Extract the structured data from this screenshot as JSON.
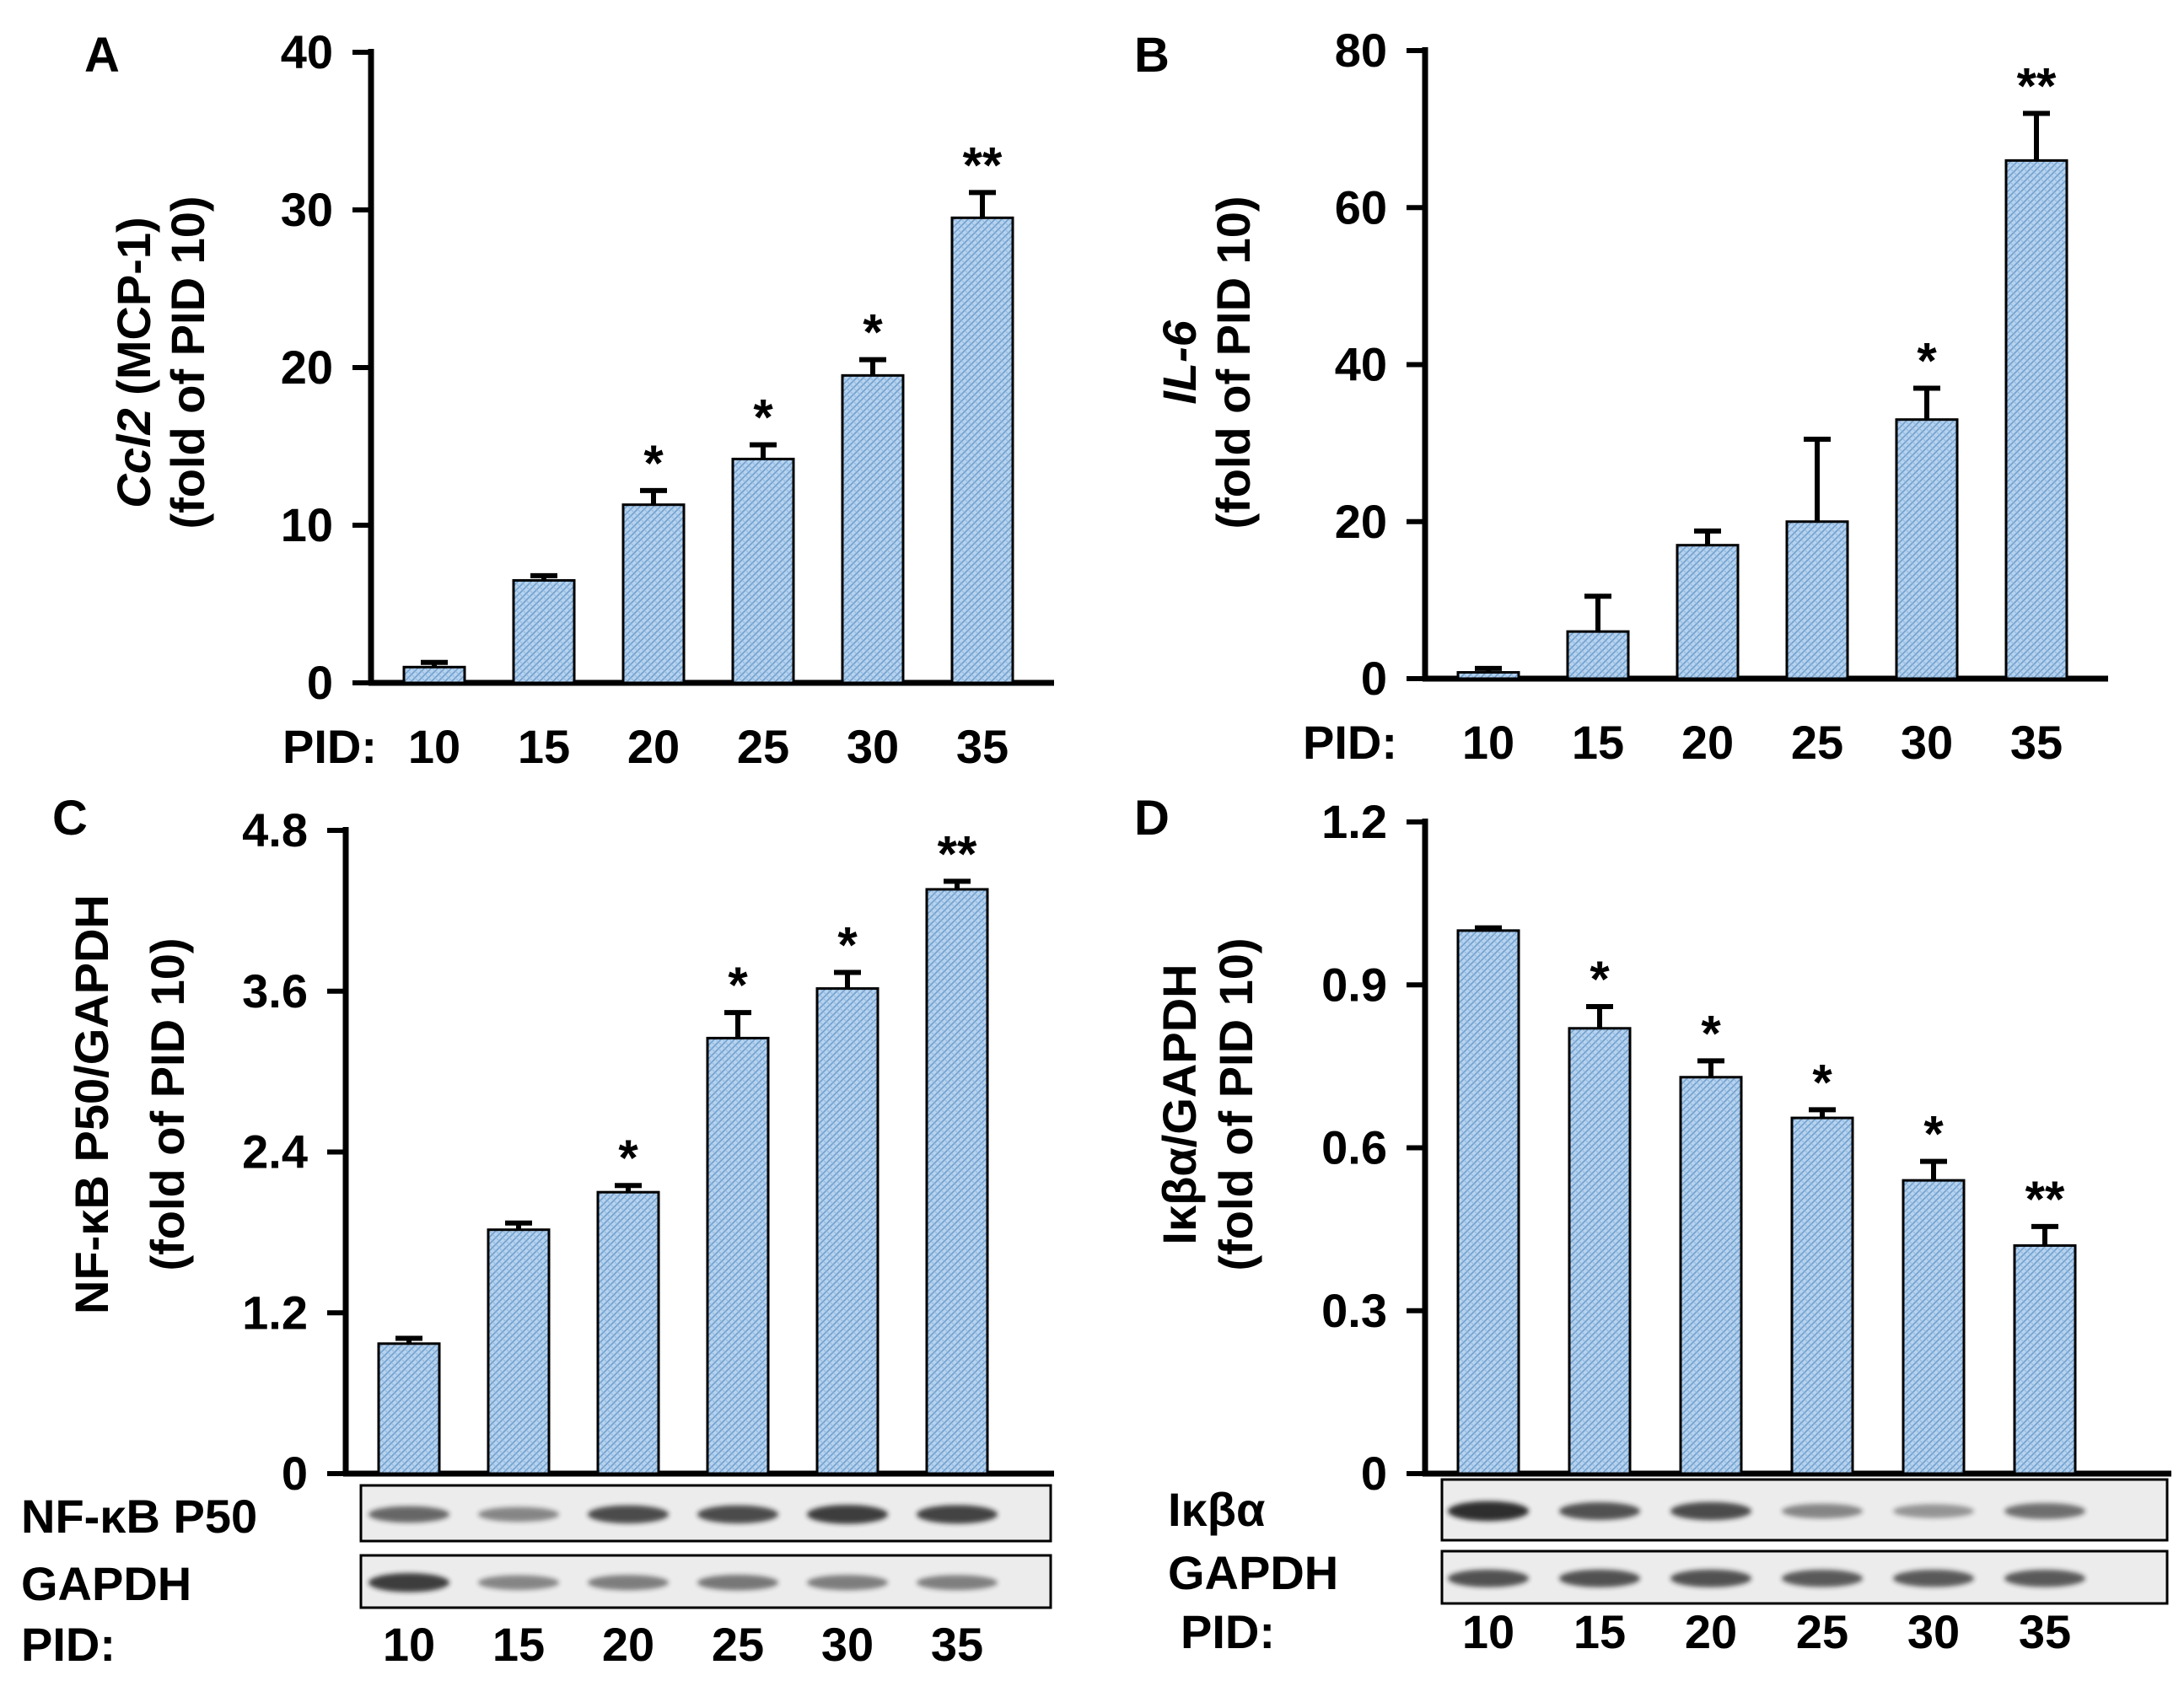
{
  "chart_data": [
    {
      "type": "bar",
      "panel": "A",
      "categories": [
        "10",
        "15",
        "20",
        "25",
        "30",
        "35"
      ],
      "values": [
        1.0,
        6.5,
        11.3,
        14.2,
        19.5,
        29.5
      ],
      "errors": [
        0.3,
        0.3,
        0.9,
        0.9,
        1.0,
        1.6
      ],
      "significance": [
        "",
        "",
        "*",
        "*",
        "*",
        "**"
      ],
      "ylabel_italic": "Ccl2",
      "ylabel_rest": " (MCP-1)",
      "ylabel_line2": "(fold of PID 10)",
      "xlabel": "PID:",
      "ylim": [
        0,
        40
      ],
      "yticks": [
        "0",
        "10",
        "20",
        "30",
        "40"
      ]
    },
    {
      "type": "bar",
      "panel": "B",
      "categories": [
        "10",
        "15",
        "20",
        "25",
        "30",
        "35"
      ],
      "values": [
        0.8,
        6.0,
        17.0,
        20.0,
        33.0,
        66.0
      ],
      "errors": [
        0.5,
        4.5,
        1.8,
        10.5,
        4.0,
        6.0
      ],
      "significance": [
        "",
        "",
        "",
        "",
        "*",
        "**"
      ],
      "ylabel_italic": "IL-6",
      "ylabel_rest": "",
      "ylabel_line2": "(fold of PID 10)",
      "xlabel": "PID:",
      "ylim": [
        0,
        80
      ],
      "yticks": [
        "0",
        "20",
        "40",
        "60",
        "80"
      ]
    },
    {
      "type": "bar",
      "panel": "C",
      "categories": [
        "10",
        "15",
        "20",
        "25",
        "30",
        "35"
      ],
      "values": [
        0.97,
        1.82,
        2.1,
        3.25,
        3.62,
        4.36
      ],
      "errors": [
        0.04,
        0.05,
        0.05,
        0.19,
        0.12,
        0.06
      ],
      "significance": [
        "",
        "",
        "*",
        "*",
        "*",
        "**"
      ],
      "ylabel_italic": "",
      "ylabel_rest": "NF-κB P50/GAPDH",
      "ylabel_line2": "(fold of PID 10)",
      "xlabel": "PID:",
      "ylim": [
        0,
        4.8
      ],
      "yticks": [
        "0",
        "1.2",
        "2.4",
        "3.6",
        "4.8"
      ],
      "blot_labels": [
        "NF-κB P50",
        "GAPDH"
      ]
    },
    {
      "type": "bar",
      "panel": "D",
      "categories": [
        "10",
        "15",
        "20",
        "25",
        "30",
        "35"
      ],
      "values": [
        1.0,
        0.82,
        0.73,
        0.655,
        0.54,
        0.42
      ],
      "errors": [
        0.005,
        0.04,
        0.03,
        0.015,
        0.035,
        0.035
      ],
      "significance": [
        "",
        "*",
        "*",
        "*",
        "*",
        "**"
      ],
      "ylabel_italic": "",
      "ylabel_rest": "Iκβα/GAPDH",
      "ylabel_line2": "(fold of PID 10)",
      "xlabel": "PID:",
      "ylim": [
        0,
        1.2
      ],
      "yticks": [
        "0",
        "0.3",
        "0.6",
        "0.9",
        "1.2"
      ],
      "blot_labels": [
        "Iκβα",
        "GAPDH"
      ]
    }
  ],
  "colors": {
    "bar_fill": "#b7d3ef",
    "bar_hatch": "#6f9fcc",
    "axis": "#000000",
    "blot_bg": "#ececec",
    "band": "#1e1e1e"
  }
}
